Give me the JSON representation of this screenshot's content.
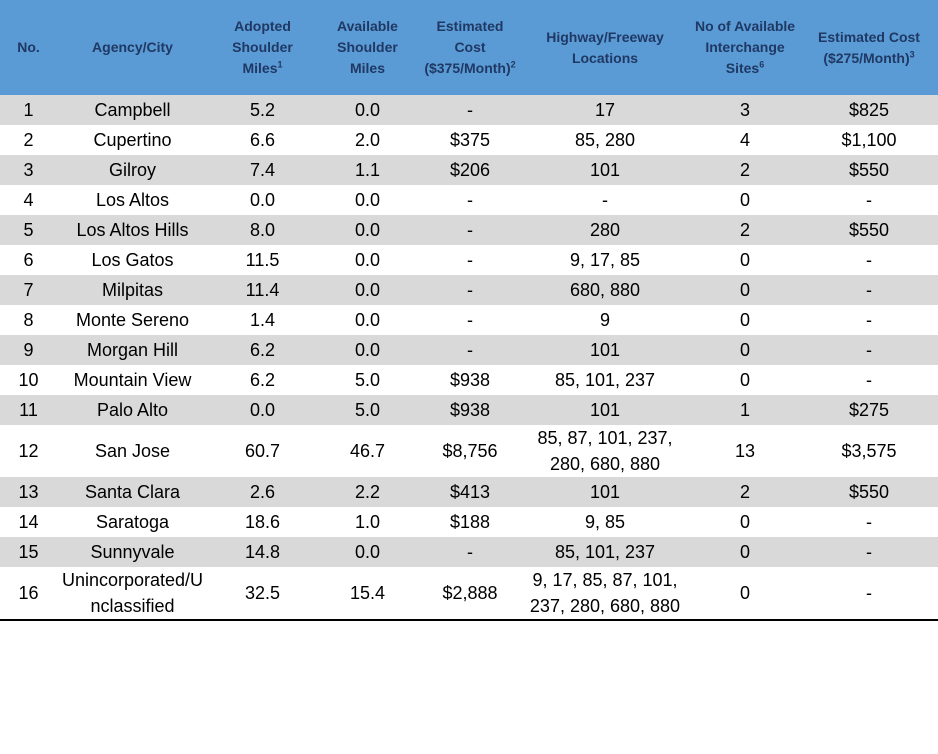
{
  "table": {
    "header": [
      {
        "text": "No."
      },
      {
        "text": "Agency/City"
      },
      {
        "text": "Adopted Shoulder Miles",
        "sup": "1"
      },
      {
        "text": "Available Shoulder Miles"
      },
      {
        "text": "Estimated Cost ($375/Month)",
        "sup": "2"
      },
      {
        "text": "Highway/Freeway Locations"
      },
      {
        "text": "No of Available Interchange Sites",
        "sup": "6"
      },
      {
        "text": "Estimated Cost ($275/Month)",
        "sup": "3"
      }
    ],
    "rows": [
      [
        "1",
        "Campbell",
        "5.2",
        "0.0",
        "-",
        "17",
        "3",
        "$825"
      ],
      [
        "2",
        "Cupertino",
        "6.6",
        "2.0",
        "$375",
        "85, 280",
        "4",
        "$1,100"
      ],
      [
        "3",
        "Gilroy",
        "7.4",
        "1.1",
        "$206",
        "101",
        "2",
        "$550"
      ],
      [
        "4",
        "Los Altos",
        "0.0",
        "0.0",
        "-",
        "-",
        "0",
        "-"
      ],
      [
        "5",
        "Los Altos Hills",
        "8.0",
        "0.0",
        "-",
        "280",
        "2",
        "$550"
      ],
      [
        "6",
        "Los Gatos",
        "11.5",
        "0.0",
        "-",
        "9, 17, 85",
        "0",
        "-"
      ],
      [
        "7",
        "Milpitas",
        "11.4",
        "0.0",
        "-",
        "680, 880",
        "0",
        "-"
      ],
      [
        "8",
        "Monte Sereno",
        "1.4",
        "0.0",
        "-",
        "9",
        "0",
        "-"
      ],
      [
        "9",
        "Morgan Hill",
        "6.2",
        "0.0",
        "-",
        "101",
        "0",
        "-"
      ],
      [
        "10",
        "Mountain View",
        "6.2",
        "5.0",
        "$938",
        "85, 101, 237",
        "0",
        "-"
      ],
      [
        "11",
        "Palo Alto",
        "0.0",
        "5.0",
        "$938",
        "101",
        "1",
        "$275"
      ],
      [
        "12",
        "San Jose",
        "60.7",
        "46.7",
        "$8,756",
        "85, 87, 101, 237, 280, 680, 880",
        "13",
        "$3,575"
      ],
      [
        "13",
        "Santa Clara",
        "2.6",
        "2.2",
        "$413",
        "101",
        "2",
        "$550"
      ],
      [
        "14",
        "Saratoga",
        "18.6",
        "1.0",
        "$188",
        "9, 85",
        "0",
        "-"
      ],
      [
        "15",
        "Sunnyvale",
        "14.8",
        "0.0",
        "-",
        "85, 101, 237",
        "0",
        "-"
      ],
      [
        "16",
        "Unincorporated/Unclassified",
        "32.5",
        "15.4",
        "$2,888",
        "9, 17, 85, 87, 101, 237, 280, 680, 880",
        "0",
        "-"
      ]
    ]
  }
}
